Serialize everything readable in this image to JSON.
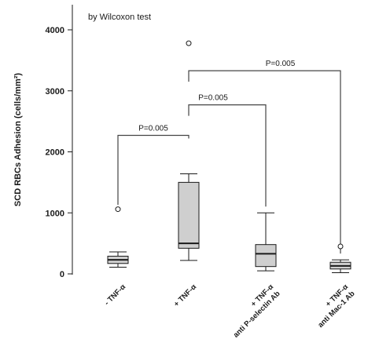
{
  "chart_data": {
    "type": "box",
    "annotation": "by Wilcoxon test",
    "ylabel": "SCD RBCs Adhesion (cells/mm²)",
    "ylim": [
      0,
      4300
    ],
    "yticks": [
      0,
      1000,
      2000,
      3000,
      4000
    ],
    "categories": [
      {
        "lines": [
          "- TNF-α"
        ]
      },
      {
        "lines": [
          "+ TNF-α"
        ]
      },
      {
        "lines": [
          "+ TNF-α",
          "anti P-selectin Ab"
        ]
      },
      {
        "lines": [
          "+ TNF-α",
          "anti Mac-1 Ab"
        ]
      }
    ],
    "boxes": [
      {
        "whisker_low": 110,
        "q1": 170,
        "median": 230,
        "q3": 290,
        "whisker_high": 360,
        "outliers": [
          1060
        ]
      },
      {
        "whisker_low": 220,
        "q1": 420,
        "median": 500,
        "q3": 1500,
        "whisker_high": 1640,
        "outliers": [
          3780
        ]
      },
      {
        "whisker_low": 50,
        "q1": 120,
        "median": 330,
        "q3": 480,
        "whisker_high": 1000,
        "outliers": []
      },
      {
        "whisker_low": 20,
        "q1": 80,
        "median": 130,
        "q3": 190,
        "whisker_high": 230,
        "outliers": [
          450
        ]
      }
    ],
    "comparisons": [
      {
        "from": 0,
        "to": 1,
        "y": 2270,
        "label": "P=0.005"
      },
      {
        "from": 1,
        "to": 2,
        "y": 2770,
        "label": "P=0.005"
      },
      {
        "from": 1,
        "to": 3,
        "y": 3330,
        "label": "P=0.005"
      }
    ],
    "colors": {
      "box_fill": "#cfcfcf",
      "line": "#1a1a1a",
      "bracket": "#444444"
    }
  }
}
